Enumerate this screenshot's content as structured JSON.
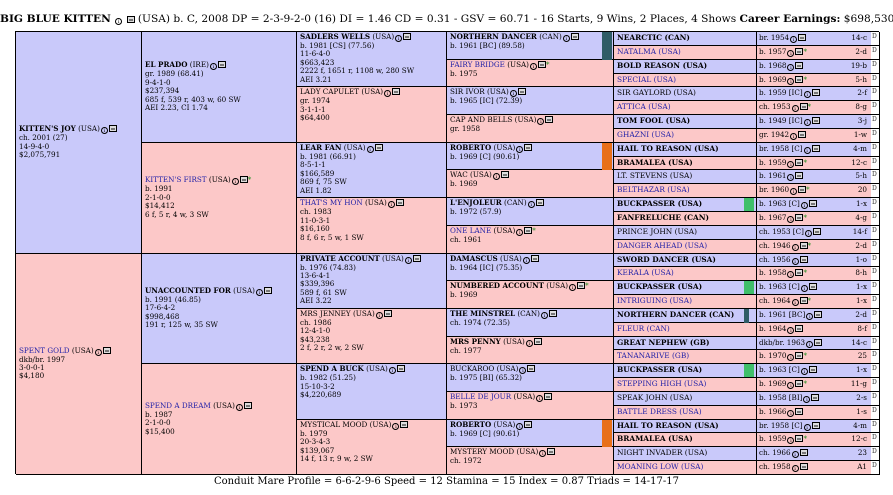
{
  "header": {
    "horse": "BIG BLUE KITTEN",
    "desc": "(USA) b. C, 2008 DP = 2-3-9-2-0 (16) DI = 1.46   CD = 0.31 - GSV = 60.71 - 16 Starts, 9 Wins, 2 Places, 4 Shows",
    "earn_label": "Career Earnings:",
    "earn_value": "$698,530"
  },
  "footer": "Conduit Mare Profile = 6-6-2-9-6   Speed = 12   Stamina = 15   Index = 0.87   Triads = 14-17-17",
  "gen1": [
    {
      "name": "KITTEN'S JOY",
      "country": "(USA)",
      "lines": [
        "ch. 2001 (27)",
        "14-9-4-0",
        "$2,075,791"
      ]
    },
    {
      "name": "SPENT GOLD",
      "country": "(USA)",
      "lines": [
        "dkb/br. 1997",
        "3-0-0-1",
        "$4,180"
      ]
    }
  ],
  "gen2": [
    {
      "name": "EL PRADO",
      "country": "(IRE)",
      "lines": [
        "gr. 1989 (68.41)",
        "9-4-1-0",
        "$237,394",
        "685 f, 539 r, 403 w, 60 SW",
        "AEI 2.23, CI 1.74"
      ]
    },
    {
      "name": "KITTEN'S FIRST",
      "country": "(USA)",
      "lines": [
        "b. 1991",
        "2-1-0-0",
        "$14,412",
        "6 f, 5 r, 4 w, 3 SW"
      ]
    },
    {
      "name": "UNACCOUNTED FOR",
      "country": "(USA)",
      "lines": [
        "b. 1991 (46.85)",
        "17-6-4-2",
        "$998,468",
        "191 r, 125 w, 35 SW"
      ]
    },
    {
      "name": "SPEND A DREAM",
      "country": "(USA)",
      "lines": [
        "b. 1987",
        "2-1-0-0",
        "$15,400"
      ]
    }
  ],
  "gen3": [
    {
      "name": "SADLERS WELLS",
      "country": "(USA)",
      "lines": [
        "b. 1981 [CS] (77.56)",
        "11-6-4-0",
        "$663,423",
        "2222 f, 1651 r, 1108 w, 280 SW",
        "AEI 3.21"
      ]
    },
    {
      "name": "LADY CAPULET",
      "country": "(USA)",
      "lines": [
        "gr. 1974",
        "3-1-1-1",
        "$64,400"
      ]
    },
    {
      "name": "LEAR FAN",
      "country": "(USA)",
      "lines": [
        "b. 1981 (66.91)",
        "8-5-1-1",
        "$166,589",
        "869 f, 75 SW",
        "AEI 1.82"
      ]
    },
    {
      "name": "THAT'S MY HON",
      "country": "(USA)",
      "lines": [
        "ch. 1983",
        "11-0-3-1",
        "$16,160",
        "8 f, 6 r, 5 w, 1 SW"
      ]
    },
    {
      "name": "PRIVATE ACCOUNT",
      "country": "(USA)",
      "lines": [
        "b. 1976 (74.83)",
        "13-6-4-1",
        "$339,396",
        "589 f, 61 SW",
        "AEI 3.22"
      ]
    },
    {
      "name": "MRS JENNEY",
      "country": "(USA)",
      "lines": [
        "ch. 1986",
        "12-4-1-0",
        "$43,238",
        "2 f, 2 r, 2 w, 2 SW"
      ]
    },
    {
      "name": "SPEND A BUCK",
      "country": "(USA)",
      "lines": [
        "b. 1982 (51.25)",
        "15-10-3-2",
        "$4,220,689"
      ]
    },
    {
      "name": "MYSTICAL MOOD",
      "country": "(USA)",
      "lines": [
        "b. 1979",
        "20-3-4-3",
        "$139,067",
        "14 f, 13 r, 9 w, 2 SW"
      ]
    }
  ],
  "gen4": [
    {
      "name": "NORTHERN DANCER",
      "country": "(CAN)",
      "lines": [
        "b. 1961 [BC] (89.58)"
      ]
    },
    {
      "name": "FAIRY BRIDGE",
      "country": "(USA)",
      "lines": [
        "b. 1975"
      ]
    },
    {
      "name": "SIR IVOR",
      "country": "(USA)",
      "lines": [
        "b. 1965 [IC] (72.39)"
      ]
    },
    {
      "name": "CAP AND BELLS",
      "country": "(USA)",
      "lines": [
        "gr. 1958"
      ]
    },
    {
      "name": "ROBERTO",
      "country": "(USA)",
      "lines": [
        "b. 1969 [C] (90.61)"
      ]
    },
    {
      "name": "WAC",
      "country": "(USA)",
      "lines": [
        "b. 1969"
      ]
    },
    {
      "name": "L'ENJOLEUR",
      "country": "(CAN)",
      "lines": [
        "b. 1972 (57.9)"
      ]
    },
    {
      "name": "ONE LANE",
      "country": "(USA)",
      "lines": [
        "ch. 1961"
      ]
    },
    {
      "name": "DAMASCUS",
      "country": "(USA)",
      "lines": [
        "b. 1964 [IC] (75.35)"
      ]
    },
    {
      "name": "NUMBERED ACCOUNT",
      "country": "(USA)",
      "lines": [
        "b. 1969"
      ]
    },
    {
      "name": "THE MINSTREL",
      "country": "(CAN)",
      "lines": [
        "ch. 1974 (72.35)"
      ]
    },
    {
      "name": "MRS PENNY",
      "country": "(USA)",
      "lines": [
        "ch. 1977"
      ]
    },
    {
      "name": "BUCKAROO",
      "country": "(USA)",
      "lines": [
        "b. 1975 [BI] (65.32)"
      ]
    },
    {
      "name": "BELLE DE JOUR",
      "country": "(USA)",
      "lines": [
        "b. 1973"
      ]
    },
    {
      "name": "ROBERTO",
      "country": "(USA)",
      "lines": [
        "b. 1969 [C] (90.61)"
      ]
    },
    {
      "name": "MYSTERY MOOD",
      "country": "(USA)",
      "lines": [
        "ch. 1972"
      ]
    }
  ],
  "gen5": [
    {
      "name": "NEARCTIC (CAN)",
      "info": "br. 1954",
      "fam": "14-c"
    },
    {
      "name": "NATALMA (USA)",
      "info": "b. 1957",
      "fam": "2-d"
    },
    {
      "name": "BOLD REASON (USA)",
      "info": "b. 1968",
      "fam": "19-b"
    },
    {
      "name": "SPECIAL (USA)",
      "info": "b. 1969",
      "fam": "5-h"
    },
    {
      "name": "SIR GAYLORD (USA)",
      "info": "b. 1959 [IC]",
      "fam": "2-f"
    },
    {
      "name": "ATTICA (USA)",
      "info": "ch. 1953",
      "fam": "8-g"
    },
    {
      "name": "TOM FOOL (USA)",
      "info": "b. 1949 [IC]",
      "fam": "3-j"
    },
    {
      "name": "GHAZNI (USA)",
      "info": "gr. 1942",
      "fam": "1-w"
    },
    {
      "name": "HAIL TO REASON (USA)",
      "info": "br. 1958 [C]",
      "fam": "4-m"
    },
    {
      "name": "BRAMALEA (USA)",
      "info": "b. 1959",
      "fam": "12-c"
    },
    {
      "name": "LT. STEVENS (USA)",
      "info": "b. 1961",
      "fam": "5-h"
    },
    {
      "name": "BELTHAZAR (USA)",
      "info": "br. 1960",
      "fam": "20"
    },
    {
      "name": "BUCKPASSER (USA)",
      "info": "b. 1963 [C]",
      "fam": "1-x"
    },
    {
      "name": "FANFRELUCHE (CAN)",
      "info": "b. 1967",
      "fam": "4-g"
    },
    {
      "name": "PRINCE JOHN (USA)",
      "info": "ch. 1953 [C]",
      "fam": "14-f"
    },
    {
      "name": "DANGER AHEAD (USA)",
      "info": "ch. 1946",
      "fam": "2-d"
    },
    {
      "name": "SWORD DANCER (USA)",
      "info": "ch. 1956",
      "fam": "1-o"
    },
    {
      "name": "KERALA (USA)",
      "info": "b. 1958",
      "fam": "8-h"
    },
    {
      "name": "BUCKPASSER (USA)",
      "info": "b. 1963 [C]",
      "fam": "1-x"
    },
    {
      "name": "INTRIGUING (USA)",
      "info": "ch. 1964",
      "fam": "1-x"
    },
    {
      "name": "NORTHERN DANCER (CAN)",
      "info": "b. 1961 [BC]",
      "fam": "2-d"
    },
    {
      "name": "FLEUR (CAN)",
      "info": "b. 1964",
      "fam": "8-f"
    },
    {
      "name": "GREAT NEPHEW (GB)",
      "info": "dkb/br. 1963",
      "fam": "14-c"
    },
    {
      "name": "TANANARIVE (GB)",
      "info": "b. 1970",
      "fam": "25"
    },
    {
      "name": "BUCKPASSER (USA)",
      "info": "b. 1963 [C]",
      "fam": "1-x"
    },
    {
      "name": "STEPPING HIGH (USA)",
      "info": "b. 1969",
      "fam": "11-g"
    },
    {
      "name": "SPEAK JOHN (USA)",
      "info": "b. 1958 [BI]",
      "fam": "2-s"
    },
    {
      "name": "BATTLE DRESS (USA)",
      "info": "b. 1966",
      "fam": "1-s"
    },
    {
      "name": "HAIL TO REASON (USA)",
      "info": "br. 1958 [C]",
      "fam": "4-m"
    },
    {
      "name": "BRAMALEA (USA)",
      "info": "b. 1959",
      "fam": "12-c"
    },
    {
      "name": "NIGHT INVADER (USA)",
      "info": "ch. 1966",
      "fam": "23"
    },
    {
      "name": "MOANING LOW (USA)",
      "info": "ch. 1958",
      "fam": "A1"
    }
  ],
  "colors": {
    "male": "#c9c9fa",
    "female": "#fcc8c8",
    "teal": "#2f5c66",
    "orange": "#e8701a",
    "green": "#3fbf6a",
    "link": "#1f1fa8"
  }
}
